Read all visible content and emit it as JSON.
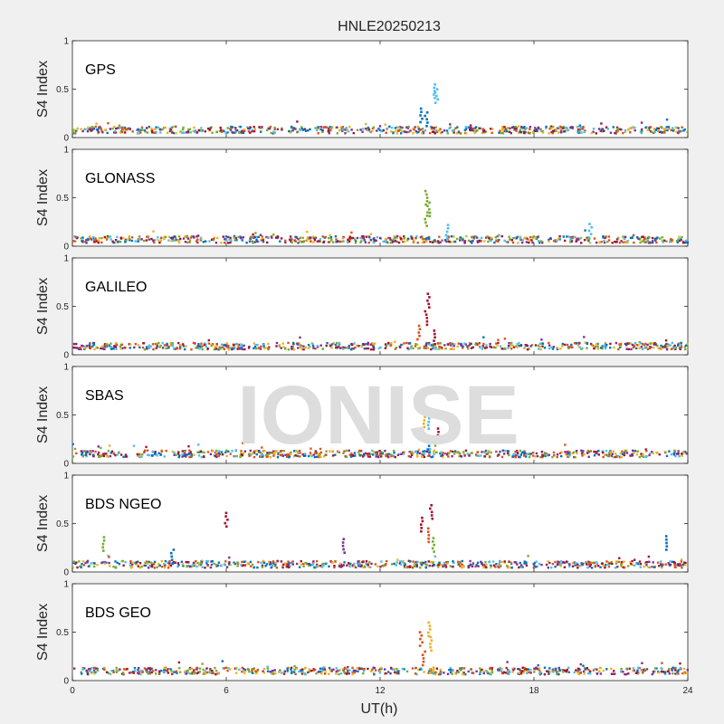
{
  "chart_data": {
    "type": "scatter",
    "title": "HNLE20250213",
    "xlabel": "UT(h)",
    "watermark": "IONISE",
    "xlim": [
      0,
      24
    ],
    "xticks": [
      "0",
      "6",
      "12",
      "18",
      "24"
    ],
    "ylim": [
      0,
      1
    ],
    "yticks": [
      "0",
      "0.5",
      "1"
    ],
    "grid": false,
    "colors": [
      "#0072BD",
      "#D95319",
      "#EDB120",
      "#7E2F8E",
      "#77AC30",
      "#4DBEEE",
      "#A2142F"
    ],
    "panels": [
      {
        "label": "GPS",
        "ylabel": "S4 Index",
        "baseline": 0.08,
        "event": [
          {
            "x": 13.6,
            "y": 0.3,
            "series": 0
          },
          {
            "x": 13.8,
            "y": 0.26,
            "series": 0
          },
          {
            "x": 14.1,
            "y": 0.55,
            "series": 5
          },
          {
            "x": 14.2,
            "y": 0.5,
            "series": 5
          }
        ]
      },
      {
        "label": "GLONASS",
        "ylabel": "S4 Index",
        "baseline": 0.07,
        "event": [
          {
            "x": 13.8,
            "y": 0.57,
            "series": 4
          },
          {
            "x": 13.9,
            "y": 0.45,
            "series": 4
          },
          {
            "x": 13.8,
            "y": 0.35,
            "series": 4
          },
          {
            "x": 14.6,
            "y": 0.22,
            "series": 5
          },
          {
            "x": 20.2,
            "y": 0.23,
            "series": 5
          }
        ]
      },
      {
        "label": "GALILEO",
        "ylabel": "S4 Index",
        "baseline": 0.09,
        "event": [
          {
            "x": 13.9,
            "y": 0.63,
            "series": 6
          },
          {
            "x": 13.8,
            "y": 0.45,
            "series": 6
          },
          {
            "x": 13.5,
            "y": 0.3,
            "series": 1
          },
          {
            "x": 14.1,
            "y": 0.25,
            "series": 6
          }
        ]
      },
      {
        "label": "SBAS",
        "ylabel": "S4 Index",
        "baseline": 0.1,
        "event": [
          {
            "x": 13.7,
            "y": 0.48,
            "series": 2
          },
          {
            "x": 13.9,
            "y": 0.5,
            "series": 5
          },
          {
            "x": 14.3,
            "y": 0.36,
            "series": 6
          },
          {
            "x": 13.9,
            "y": 0.25,
            "series": 0
          }
        ]
      },
      {
        "label": "BDS NGEO",
        "ylabel": "S4 Index",
        "baseline": 0.08,
        "event": [
          {
            "x": 14.0,
            "y": 0.69,
            "series": 6
          },
          {
            "x": 13.6,
            "y": 0.56,
            "series": 6
          },
          {
            "x": 13.9,
            "y": 0.45,
            "series": 1
          },
          {
            "x": 14.1,
            "y": 0.35,
            "series": 4
          },
          {
            "x": 6.0,
            "y": 0.61,
            "series": 6
          },
          {
            "x": 1.2,
            "y": 0.36,
            "series": 4
          },
          {
            "x": 3.9,
            "y": 0.23,
            "series": 0
          },
          {
            "x": 10.6,
            "y": 0.34,
            "series": 3
          },
          {
            "x": 23.2,
            "y": 0.37,
            "series": 0
          }
        ]
      },
      {
        "label": "BDS GEO",
        "ylabel": "S4 Index",
        "baseline": 0.1,
        "event": [
          {
            "x": 13.6,
            "y": 0.5,
            "series": 1
          },
          {
            "x": 13.9,
            "y": 0.6,
            "series": 2
          },
          {
            "x": 14.0,
            "y": 0.45,
            "series": 2
          },
          {
            "x": 13.7,
            "y": 0.3,
            "series": 1
          }
        ]
      }
    ]
  }
}
